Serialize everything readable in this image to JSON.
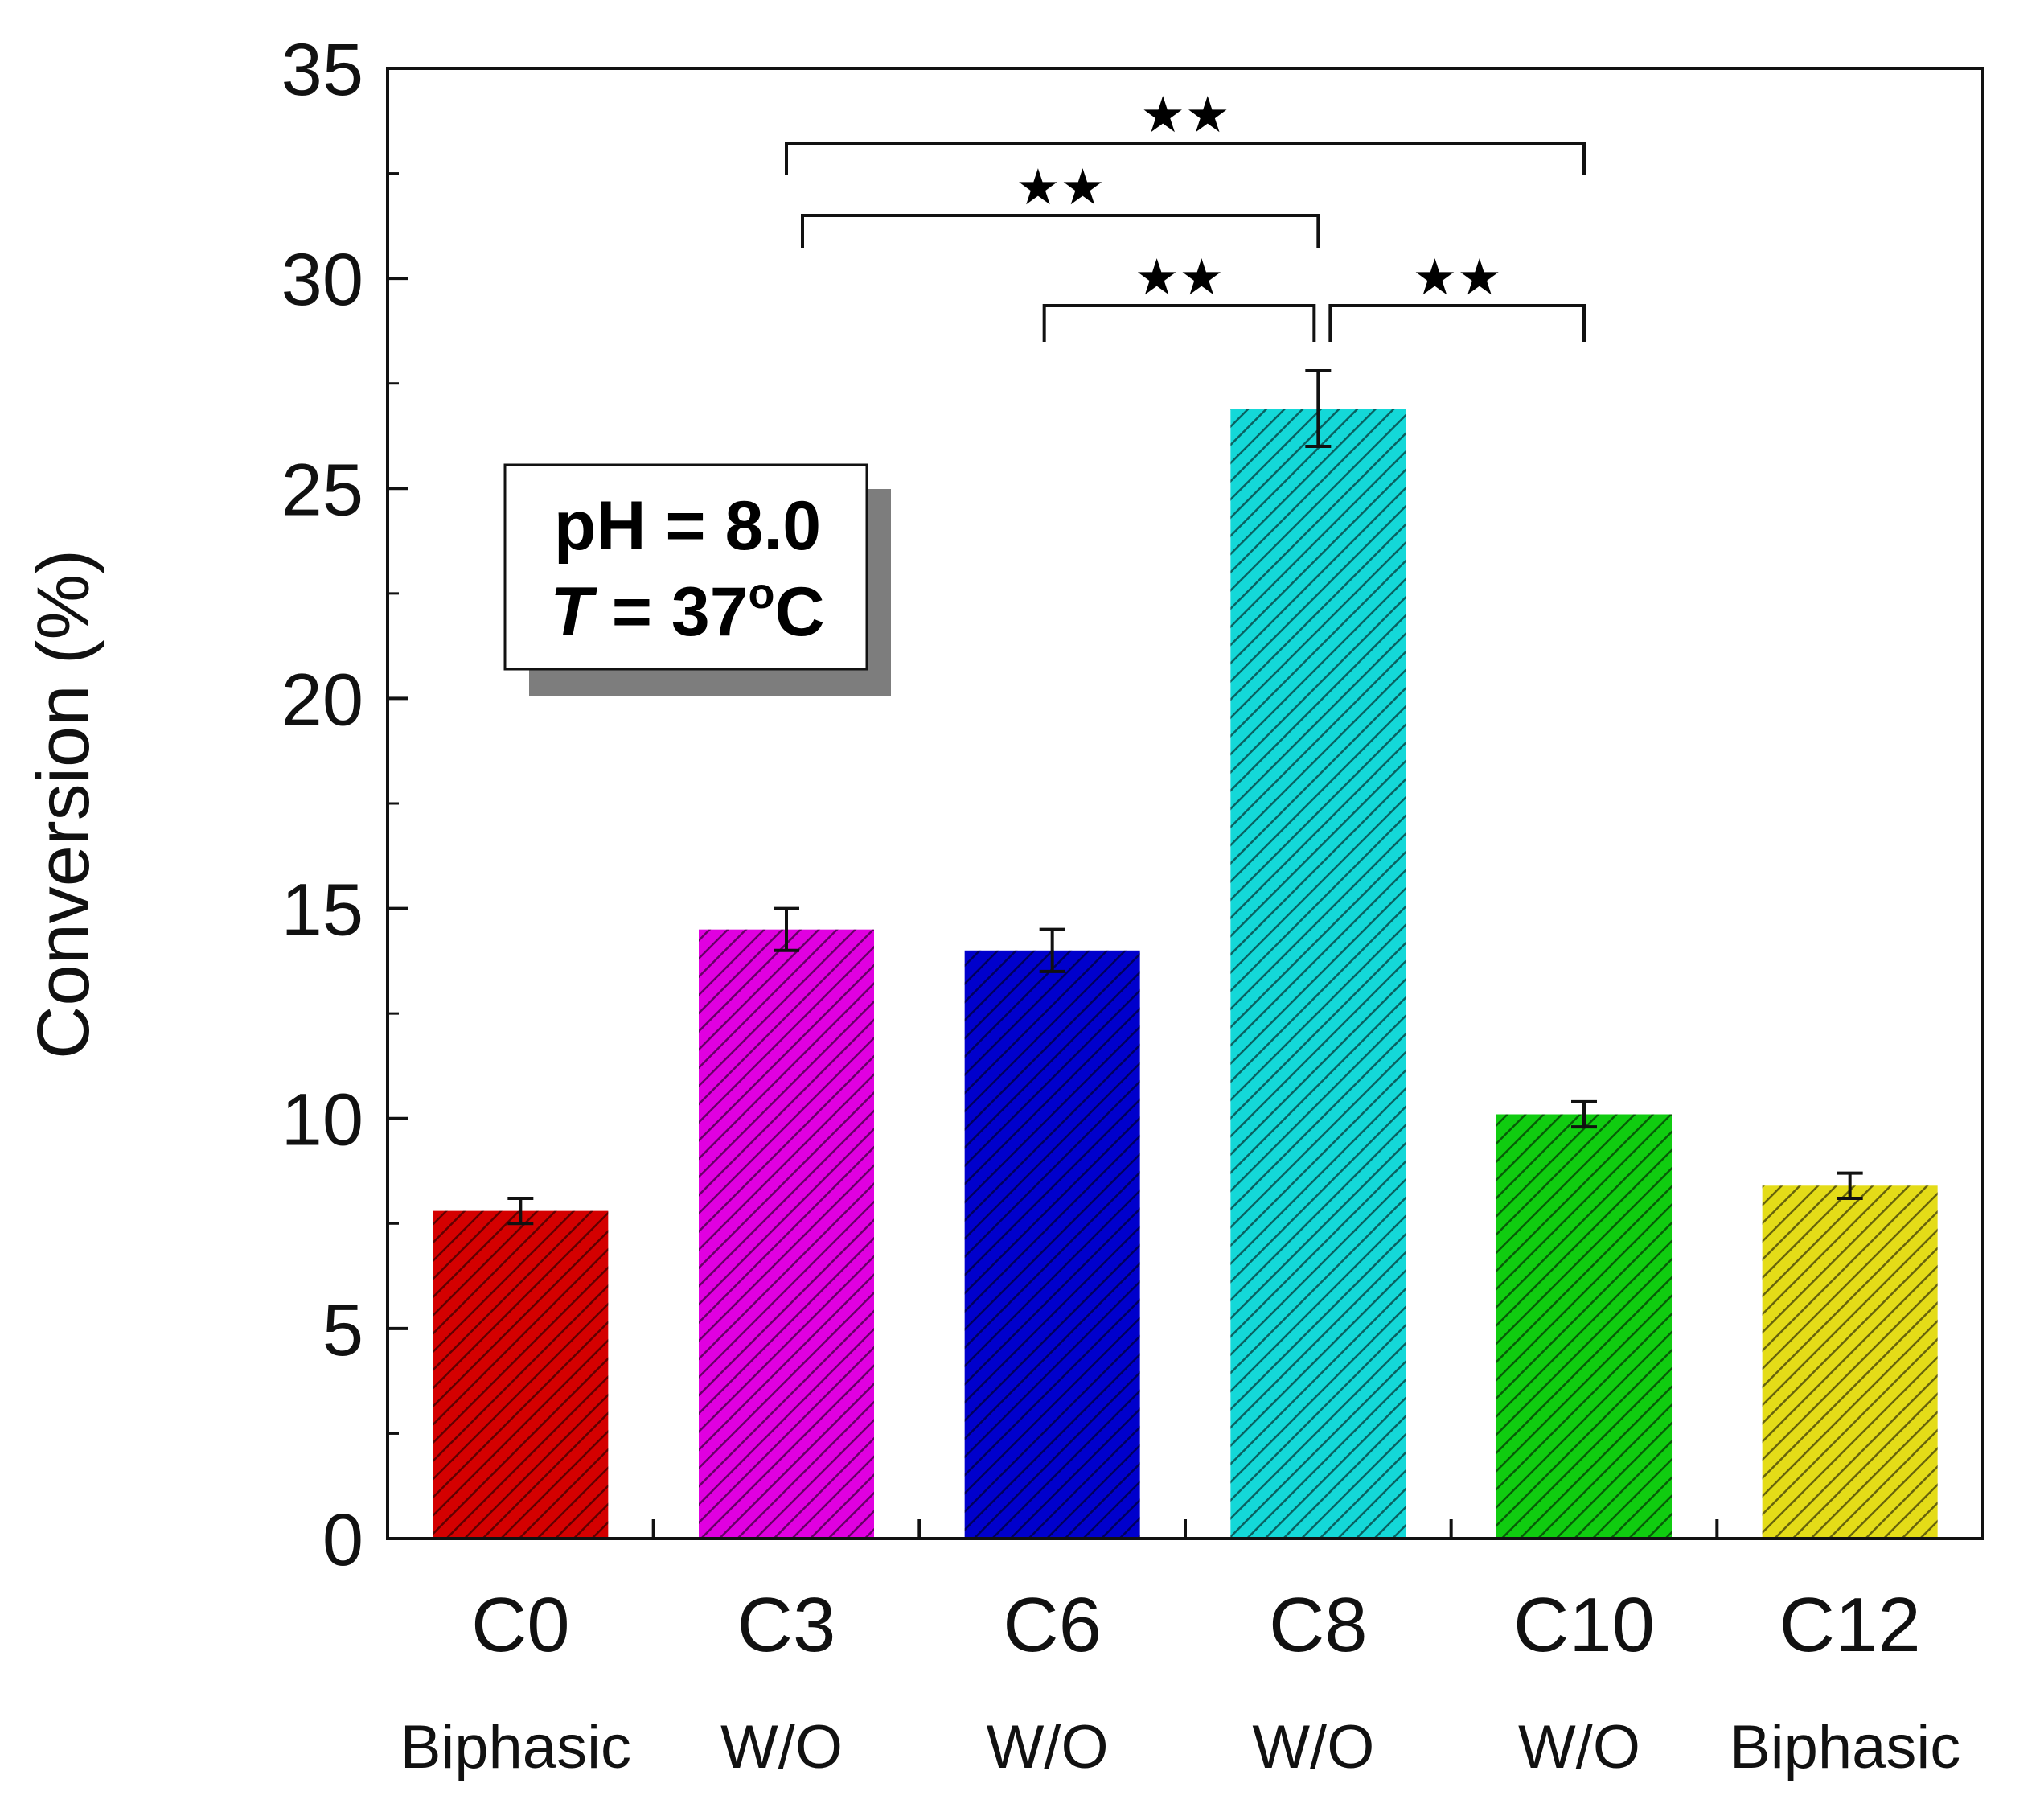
{
  "chart_data": {
    "type": "bar",
    "title": "",
    "xlabel": "",
    "ylabel": "Conversion  (%)",
    "ylim": [
      0,
      35
    ],
    "yticks": [
      0,
      5,
      10,
      15,
      20,
      25,
      30,
      35
    ],
    "grid": false,
    "categories": [
      "C0",
      "C3",
      "C6",
      "C8",
      "C10",
      "C12"
    ],
    "sublabels": [
      "Biphasic",
      "W/O",
      "W/O",
      "W/O",
      "W/O",
      "Biphasic"
    ],
    "values": [
      7.8,
      14.5,
      14.0,
      26.9,
      10.1,
      8.4
    ],
    "errors": [
      0.3,
      0.5,
      0.5,
      0.9,
      0.3,
      0.3
    ],
    "bar_colors": [
      "#d40000",
      "#e000e0",
      "#0000cc",
      "#14d8d8",
      "#10cc10",
      "#e4dc18"
    ],
    "significance": [
      {
        "from": "C3",
        "to": "C10",
        "label": "★★"
      },
      {
        "from": "C3",
        "to": "C8",
        "label": "★★"
      },
      {
        "from": "C6",
        "to": "C8",
        "label": "★★"
      },
      {
        "from": "C8",
        "to": "C10",
        "label": "★★"
      }
    ],
    "annotation": {
      "line1": "pH = 8.0",
      "line2_italic": "T",
      "line2_rest": " = 37",
      "line2_sup": "o",
      "line2_unit": "C"
    }
  }
}
